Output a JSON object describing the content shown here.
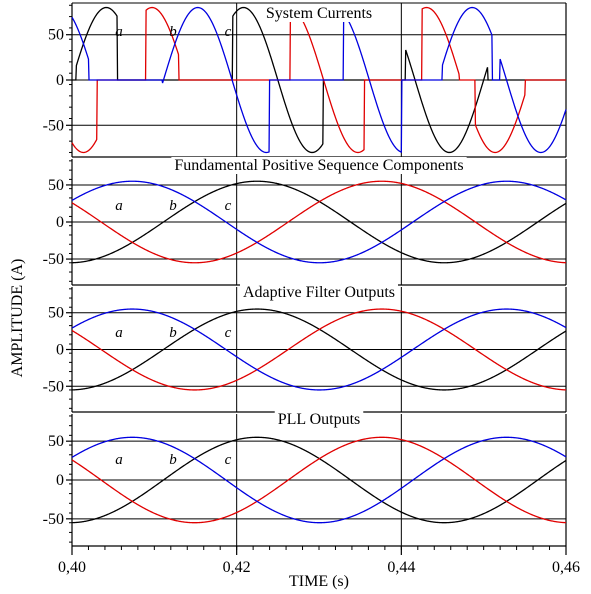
{
  "chart_data": {
    "type": "line",
    "xlabel": "TIME (s)",
    "ylabel": "AMPLITUDE (A)",
    "xlim": [
      0.4,
      0.46
    ],
    "x_ticks": [
      "0,40",
      "0,42",
      "0,44",
      "0,46"
    ],
    "x_tick_values": [
      0.4,
      0.42,
      0.44,
      0.46
    ],
    "phase_colors": {
      "a": "#000000",
      "b": "#e00000",
      "c": "#0000e0"
    },
    "grid": "vertical lines at major ticks, horizontal lines at labeled y ticks",
    "panels": [
      {
        "title": "System Currents",
        "ylim": [
          -85,
          85
        ],
        "y_ticks": [
          50,
          0,
          -50
        ],
        "y_tick_labels": [
          "50",
          "0",
          "-50"
        ],
        "phase_labels": [
          "a",
          "b",
          "c"
        ],
        "series": [
          {
            "name": "a",
            "kind": "unbalanced",
            "frequency_hz": 60,
            "amplitude": 80,
            "phase_deg": 0,
            "active": [
              [
                0.4005,
                0.4055
              ],
              [
                0.4195,
                0.4305
              ],
              [
                0.4405,
                0.4505
              ]
            ]
          },
          {
            "name": "b",
            "kind": "unbalanced",
            "frequency_hz": 60,
            "amplitude": 80,
            "phase_deg": -120,
            "active": [
              [
                0.399,
                0.403
              ],
              [
                0.409,
                0.413
              ],
              [
                0.4265,
                0.4355
              ],
              [
                0.4425,
                0.447
              ],
              [
                0.449,
                0.455
              ]
            ]
          },
          {
            "name": "c",
            "kind": "unbalanced",
            "frequency_hz": 60,
            "amplitude": 80,
            "phase_deg": 120,
            "active": [
              [
                0.4,
                0.402
              ],
              [
                0.411,
                0.42
              ],
              [
                0.42,
                0.424
              ],
              [
                0.433,
                0.44
              ],
              [
                0.445,
                0.451
              ],
              [
                0.452,
                0.46
              ]
            ]
          }
        ]
      },
      {
        "title": "Fundamental Positive Sequence Components",
        "ylim": [
          -85,
          85
        ],
        "y_ticks": [
          50,
          0,
          -50
        ],
        "y_tick_labels": [
          "50",
          "0",
          "-50"
        ],
        "phase_labels": [
          "a",
          "b",
          "c"
        ],
        "series": [
          {
            "name": "a",
            "frequency_hz": 22,
            "amplitude": 55,
            "phase_deg": -88
          },
          {
            "name": "b",
            "frequency_hz": 22,
            "amplitude": 55,
            "phase_deg": -208
          },
          {
            "name": "c",
            "frequency_hz": 22,
            "amplitude": 55,
            "phase_deg": 32
          }
        ]
      },
      {
        "title": "Adaptive Filter Outputs",
        "ylim": [
          -85,
          85
        ],
        "y_ticks": [
          50,
          0,
          -50
        ],
        "y_tick_labels": [
          "50",
          "0",
          "-50"
        ],
        "phase_labels": [
          "a",
          "b",
          "c"
        ],
        "series": [
          {
            "name": "a",
            "frequency_hz": 22,
            "amplitude": 55,
            "phase_deg": -88
          },
          {
            "name": "b",
            "frequency_hz": 22,
            "amplitude": 55,
            "phase_deg": -208
          },
          {
            "name": "c",
            "frequency_hz": 22,
            "amplitude": 55,
            "phase_deg": 32
          }
        ]
      },
      {
        "title": "PLL Outputs",
        "ylim": [
          -85,
          85
        ],
        "y_ticks": [
          50,
          0,
          -50
        ],
        "y_tick_labels": [
          "50",
          "0",
          "-50"
        ],
        "phase_labels": [
          "a",
          "b",
          "c"
        ],
        "series": [
          {
            "name": "a",
            "frequency_hz": 22,
            "amplitude": 55,
            "phase_deg": -88
          },
          {
            "name": "b",
            "frequency_hz": 22,
            "amplitude": 55,
            "phase_deg": -208
          },
          {
            "name": "c",
            "frequency_hz": 22,
            "amplitude": 55,
            "phase_deg": 32
          }
        ]
      }
    ]
  }
}
